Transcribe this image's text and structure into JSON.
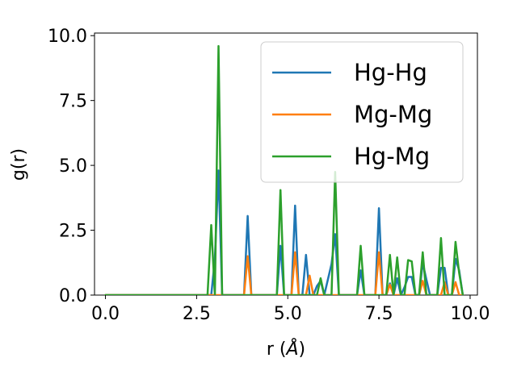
{
  "chart_data": {
    "type": "line",
    "xlabel": "r (",
    "xlabel_unit": "Å",
    "xlabel_close": ")",
    "ylabel": "g(r)",
    "xlim": [
      -0.3,
      10.2
    ],
    "ylim": [
      0.0,
      10.1
    ],
    "xticks": [
      0.0,
      2.5,
      5.0,
      7.5,
      10.0
    ],
    "xtick_labels": [
      "0.0",
      "2.5",
      "5.0",
      "7.5",
      "10.0"
    ],
    "yticks": [
      0.0,
      2.5,
      5.0,
      7.5,
      10.0
    ],
    "ytick_labels": [
      "0.0",
      "2.5",
      "5.0",
      "7.5",
      "10.0"
    ],
    "grid": false,
    "legend_position": "upper-right",
    "series": [
      {
        "name": "Hg-Hg",
        "color": "#1f77b4",
        "x": [
          0.0,
          2.8,
          2.9,
          3.0,
          3.1,
          3.2,
          3.8,
          3.9,
          4.0,
          4.7,
          4.8,
          4.9,
          5.1,
          5.2,
          5.3,
          5.4,
          5.5,
          5.6,
          5.7,
          5.8,
          5.9,
          6.0,
          6.1,
          6.2,
          6.3,
          6.4,
          6.9,
          7.0,
          7.1,
          7.4,
          7.5,
          7.6,
          7.7,
          7.8,
          7.9,
          8.0,
          8.1,
          8.2,
          8.3,
          8.4,
          8.5,
          8.6,
          8.7,
          8.8,
          8.9,
          9.0,
          9.1,
          9.2,
          9.3,
          9.4,
          9.5,
          9.6,
          9.7,
          9.8
        ],
        "y": [
          0.0,
          0.0,
          0.0,
          1.4,
          4.8,
          0.0,
          0.0,
          3.05,
          0.0,
          0.0,
          1.9,
          0.0,
          0.0,
          3.45,
          0.0,
          0.0,
          1.55,
          0.0,
          0.0,
          0.35,
          0.55,
          0.0,
          0.6,
          1.2,
          2.35,
          0.0,
          0.0,
          0.95,
          0.0,
          0.0,
          3.35,
          0.0,
          0.0,
          0.45,
          0.0,
          0.65,
          0.0,
          0.3,
          0.7,
          0.7,
          0.0,
          0.0,
          1.25,
          0.6,
          0.0,
          0.0,
          0.0,
          1.05,
          1.05,
          0.0,
          0.0,
          1.4,
          0.95,
          0.0
        ]
      },
      {
        "name": "Mg-Mg",
        "color": "#ff7f0e",
        "x": [
          0.0,
          3.8,
          3.9,
          4.0,
          5.1,
          5.2,
          5.3,
          5.5,
          5.6,
          5.7,
          7.4,
          7.5,
          7.6,
          7.7,
          7.8,
          7.9,
          8.6,
          8.7,
          8.8,
          9.2,
          9.3,
          9.4,
          9.5,
          9.6,
          9.7,
          9.8
        ],
        "y": [
          0.0,
          0.0,
          1.5,
          0.0,
          0.0,
          1.65,
          0.0,
          0.0,
          0.75,
          0.0,
          0.0,
          1.65,
          0.0,
          0.0,
          0.4,
          0.0,
          0.0,
          0.55,
          0.0,
          0.0,
          0.5,
          0.0,
          0.0,
          0.5,
          0.0,
          0.0
        ]
      },
      {
        "name": "Hg-Mg",
        "color": "#2ca02c",
        "x": [
          0.0,
          2.8,
          2.9,
          3.0,
          3.1,
          3.2,
          4.7,
          4.8,
          4.9,
          5.0,
          5.8,
          5.9,
          6.0,
          6.1,
          6.2,
          6.3,
          6.4,
          6.9,
          7.0,
          7.1,
          7.7,
          7.8,
          7.9,
          8.0,
          8.1,
          8.2,
          8.3,
          8.4,
          8.5,
          8.6,
          8.7,
          8.8,
          9.1,
          9.2,
          9.3,
          9.5,
          9.6,
          9.7,
          9.8
        ],
        "y": [
          0.0,
          0.0,
          2.7,
          0.0,
          9.6,
          0.0,
          0.0,
          4.05,
          0.0,
          0.0,
          0.0,
          0.65,
          0.0,
          0.0,
          0.0,
          4.75,
          0.0,
          0.0,
          1.9,
          0.0,
          0.0,
          1.55,
          0.0,
          1.45,
          0.0,
          0.0,
          1.35,
          1.3,
          0.0,
          0.0,
          1.65,
          0.0,
          0.0,
          2.2,
          0.0,
          0.0,
          2.05,
          0.85,
          0.0
        ]
      }
    ]
  }
}
